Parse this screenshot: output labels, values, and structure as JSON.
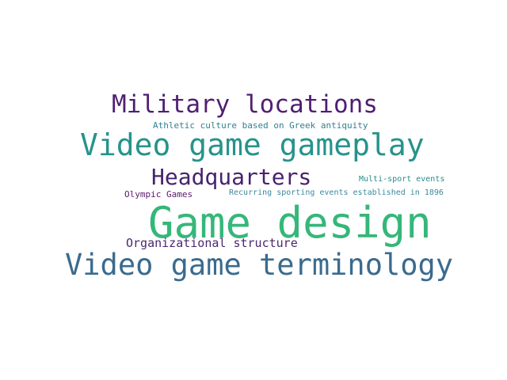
{
  "word_cloud": {
    "background": "#ffffff",
    "words": [
      {
        "text": "Game design",
        "color": "#35b779"
      },
      {
        "text": "Video game terminology",
        "color": "#3b6b8e"
      },
      {
        "text": "Video game gameplay",
        "color": "#26938b"
      },
      {
        "text": "Military locations",
        "color": "#4f1f73"
      },
      {
        "text": "Headquarters",
        "color": "#46236e"
      },
      {
        "text": "Organizational structure",
        "color": "#4b2771"
      },
      {
        "text": "Athletic culture based on Greek antiquity",
        "color": "#327f8f"
      },
      {
        "text": "Multi-sport events",
        "color": "#2a8c8c"
      },
      {
        "text": "Recurring sporting events established in 1896",
        "color": "#3b89a0"
      },
      {
        "text": "Olympic Games",
        "color": "#5a1a6a"
      }
    ]
  }
}
